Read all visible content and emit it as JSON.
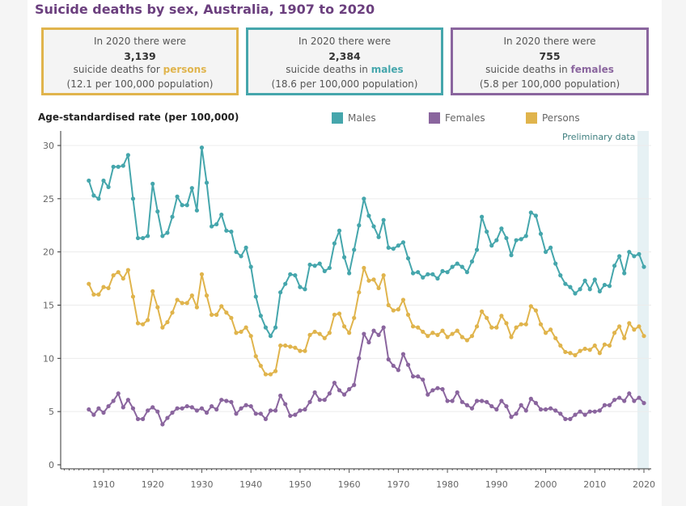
{
  "title": "Suicide deaths by sex, Australia, 1907 to 2020",
  "cards": [
    {
      "line1": "In 2020 there were",
      "count": "3,139",
      "line3_prefix": "suicide deaths for ",
      "group": "persons",
      "rate": "(12.1 per 100,000 population)",
      "color": "#e0b44c"
    },
    {
      "line1": "In 2020 there were",
      "count": "2,384",
      "line3_prefix": "suicide deaths in ",
      "group": "males",
      "rate": "(18.6 per 100,000 population)",
      "color": "#45a6ac"
    },
    {
      "line1": "In 2020 there were",
      "count": "755",
      "line3_prefix": "suicide deaths in ",
      "group": "females",
      "rate": "(5.8 per 100,000 population)",
      "color": "#8a659e"
    }
  ],
  "preliminary_label": "Preliminary data",
  "chart_data": {
    "type": "line",
    "title": "Suicide deaths by sex, Australia, 1907 to 2020",
    "ylabel": "Age-standardised rate (per 100,000)",
    "xlabel": "",
    "ylim": [
      0,
      31
    ],
    "xlim": [
      1903,
      2021
    ],
    "yticks": [
      0,
      5,
      10,
      15,
      20,
      25,
      30
    ],
    "xticks": [
      1910,
      1920,
      1930,
      1940,
      1950,
      1960,
      1970,
      1980,
      1990,
      2000,
      2010,
      2020
    ],
    "grid": true,
    "legend_position": "top",
    "preliminary_range": [
      2019,
      2020
    ],
    "x_start": 1907,
    "series": [
      {
        "name": "Males",
        "color": "#45a6ac",
        "values": [
          26.7,
          25.3,
          25.0,
          26.7,
          26.1,
          28.0,
          28.0,
          28.1,
          29.1,
          25.0,
          21.3,
          21.3,
          21.5,
          26.4,
          23.8,
          21.5,
          21.8,
          23.3,
          25.2,
          24.4,
          24.4,
          26.0,
          23.9,
          29.8,
          26.5,
          22.4,
          22.6,
          23.5,
          22.0,
          21.9,
          20.0,
          19.6,
          20.4,
          18.6,
          15.8,
          14.0,
          12.9,
          12.1,
          12.9,
          16.2,
          17.0,
          17.9,
          17.8,
          16.7,
          16.5,
          18.8,
          18.7,
          18.9,
          18.2,
          18.5,
          20.8,
          22.0,
          19.5,
          18.0,
          20.2,
          22.5,
          25.0,
          23.4,
          22.4,
          21.4,
          23.0,
          20.4,
          20.3,
          20.6,
          20.9,
          19.4,
          18.0,
          18.1,
          17.6,
          17.9,
          17.9,
          17.5,
          18.2,
          18.1,
          18.6,
          18.9,
          18.6,
          18.1,
          19.1,
          20.2,
          23.3,
          21.9,
          20.6,
          21.1,
          22.2,
          21.3,
          19.7,
          21.1,
          21.2,
          21.5,
          23.7,
          23.4,
          21.7,
          20.0,
          20.4,
          18.9,
          17.8,
          17.0,
          16.7,
          16.1,
          16.5,
          17.3,
          16.5,
          17.4,
          16.3,
          16.9,
          16.8,
          18.7,
          19.6,
          18.0,
          20.0,
          19.6,
          19.8,
          18.6
        ]
      },
      {
        "name": "Females",
        "color": "#8a659e",
        "values": [
          5.2,
          4.7,
          5.3,
          4.9,
          5.5,
          6.0,
          6.7,
          5.4,
          6.1,
          5.3,
          4.3,
          4.3,
          5.1,
          5.4,
          5.0,
          3.8,
          4.4,
          4.9,
          5.3,
          5.3,
          5.5,
          5.4,
          5.1,
          5.3,
          4.9,
          5.5,
          5.2,
          6.1,
          6.0,
          5.9,
          4.8,
          5.3,
          5.6,
          5.5,
          4.8,
          4.8,
          4.3,
          5.1,
          5.1,
          6.5,
          5.7,
          4.6,
          4.7,
          5.1,
          5.2,
          5.9,
          6.8,
          6.1,
          6.1,
          6.7,
          7.7,
          7.0,
          6.6,
          7.1,
          7.5,
          10.0,
          12.3,
          11.5,
          12.6,
          12.2,
          12.9,
          9.9,
          9.3,
          8.9,
          10.4,
          9.4,
          8.3,
          8.3,
          8.0,
          6.6,
          7.0,
          7.2,
          7.1,
          6.0,
          6.0,
          6.8,
          5.9,
          5.6,
          5.3,
          6.0,
          6.0,
          5.9,
          5.5,
          5.2,
          6.0,
          5.5,
          4.5,
          4.8,
          5.6,
          5.1,
          6.2,
          5.8,
          5.2,
          5.2,
          5.3,
          5.1,
          4.8,
          4.3,
          4.3,
          4.7,
          5.0,
          4.7,
          5.0,
          5.0,
          5.1,
          5.6,
          5.6,
          6.1,
          6.3,
          6.0,
          6.7,
          6.0,
          6.3,
          5.8
        ]
      },
      {
        "name": "Persons",
        "color": "#e0b44c",
        "values": [
          17.0,
          16.0,
          16.0,
          16.7,
          16.6,
          17.8,
          18.1,
          17.5,
          18.3,
          15.8,
          13.3,
          13.2,
          13.6,
          16.3,
          14.8,
          12.9,
          13.4,
          14.3,
          15.5,
          15.2,
          15.2,
          15.9,
          14.8,
          17.9,
          15.9,
          14.1,
          14.1,
          14.9,
          14.3,
          13.8,
          12.4,
          12.5,
          12.9,
          12.1,
          10.2,
          9.3,
          8.5,
          8.5,
          8.8,
          11.2,
          11.2,
          11.1,
          11.0,
          10.7,
          10.7,
          12.2,
          12.5,
          12.3,
          11.9,
          12.4,
          14.1,
          14.2,
          13.0,
          12.4,
          13.8,
          16.2,
          18.5,
          17.3,
          17.4,
          16.6,
          17.8,
          15.0,
          14.5,
          14.6,
          15.5,
          14.1,
          13.0,
          12.9,
          12.5,
          12.1,
          12.4,
          12.2,
          12.6,
          12.0,
          12.3,
          12.6,
          12.0,
          11.7,
          12.1,
          13.0,
          14.4,
          13.8,
          12.9,
          12.9,
          14.0,
          13.3,
          12.0,
          12.9,
          13.2,
          13.2,
          14.9,
          14.5,
          13.2,
          12.4,
          12.7,
          11.9,
          11.2,
          10.6,
          10.5,
          10.3,
          10.7,
          10.9,
          10.8,
          11.2,
          10.5,
          11.3,
          11.2,
          12.4,
          13.0,
          11.9,
          13.3,
          12.7,
          13.0,
          12.1
        ]
      }
    ]
  }
}
